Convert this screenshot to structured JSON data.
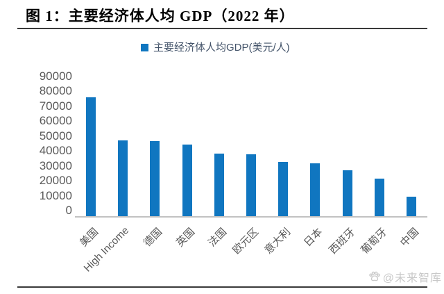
{
  "figure": {
    "title": "图 1：主要经济体人均 GDP（2022 年）",
    "watermark": {
      "icon": "paw-icon",
      "text": "@未来智库"
    }
  },
  "chart_data": {
    "type": "bar",
    "title": "主要经济体人均GDP(美元/人)",
    "legend": {
      "label": "主要经济体人均GDP(美元/人)",
      "position": "top"
    },
    "categories": [
      "美国",
      "High Income",
      "德国",
      "英国",
      "法国",
      "欧元区",
      "意大利",
      "日本",
      "西班牙",
      "葡萄牙",
      "中国"
    ],
    "values": [
      76400,
      48800,
      48200,
      45900,
      40300,
      40000,
      34800,
      33900,
      29700,
      24000,
      12700
    ],
    "xlabel": "",
    "ylabel": "",
    "ylim": [
      0,
      90000
    ],
    "ytick_interval": 10000,
    "yticks": [
      "90000",
      "80000",
      "70000",
      "60000",
      "50000",
      "40000",
      "30000",
      "20000",
      "10000",
      "0"
    ],
    "grid": false,
    "bar_color": "#1076C0",
    "axis_line_color": "#c2c2c2",
    "tick_label_color": "#595959",
    "legend_text_color": "#44546A"
  }
}
